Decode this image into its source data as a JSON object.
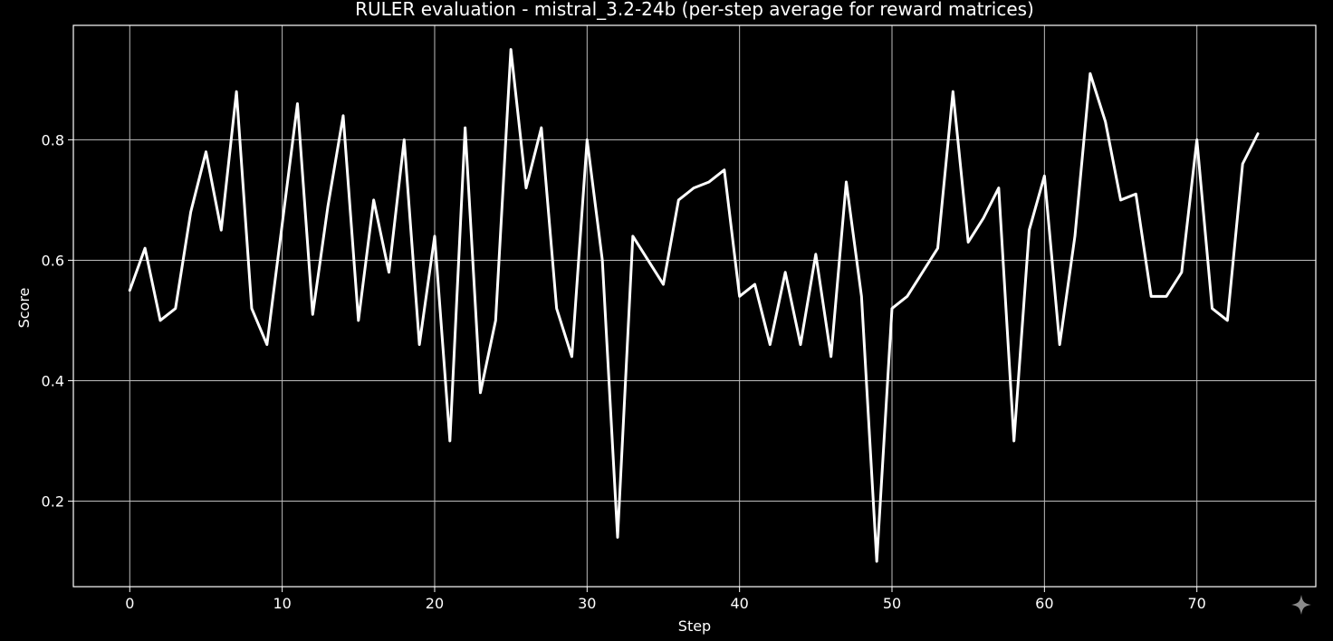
{
  "chart_data": {
    "type": "line",
    "title": "RULER evaluation - mistral_3.2-24b (per-step average for reward matrices)",
    "xlabel": "Step",
    "ylabel": "Score",
    "xlim": [
      -3.7,
      77.8
    ],
    "ylim": [
      0.058,
      0.99
    ],
    "xticks": [
      0,
      10,
      20,
      30,
      40,
      50,
      60,
      70
    ],
    "yticks": [
      0.2,
      0.4,
      0.6,
      0.8
    ],
    "xtick_labels": [
      "0",
      "10",
      "20",
      "30",
      "40",
      "50",
      "60",
      "70"
    ],
    "ytick_labels": [
      "0.2",
      "0.4",
      "0.6",
      "0.8"
    ],
    "grid": true,
    "colors": {
      "background": "#000000",
      "line": "#ffffff",
      "grid": "#bdbdbd",
      "text": "#ffffff"
    },
    "series": [
      {
        "x": [
          0,
          1,
          2,
          3,
          4,
          5,
          6,
          7,
          8,
          9,
          10,
          11,
          12,
          13,
          14,
          15,
          16,
          17,
          18,
          19,
          20,
          21,
          22,
          23,
          24,
          25,
          26,
          27,
          28,
          29,
          30,
          31,
          32,
          33,
          34,
          35,
          36,
          37,
          38,
          39,
          40,
          41,
          42,
          43,
          44,
          45,
          46,
          47,
          48,
          49,
          50,
          51,
          52,
          53,
          54,
          55,
          56,
          57,
          58,
          59,
          60,
          61,
          62,
          63,
          64,
          65,
          66,
          67,
          68,
          69,
          70,
          71,
          72,
          73,
          74
        ],
        "values": [
          0.55,
          0.62,
          0.5,
          0.52,
          0.68,
          0.78,
          0.65,
          0.88,
          0.52,
          0.46,
          0.66,
          0.86,
          0.51,
          0.69,
          0.84,
          0.5,
          0.7,
          0.58,
          0.8,
          0.46,
          0.64,
          0.3,
          0.82,
          0.38,
          0.5,
          0.95,
          0.72,
          0.82,
          0.52,
          0.44,
          0.8,
          0.6,
          0.14,
          0.64,
          0.6,
          0.56,
          0.7,
          0.72,
          0.73,
          0.75,
          0.54,
          0.56,
          0.46,
          0.58,
          0.46,
          0.61,
          0.44,
          0.73,
          0.54,
          0.1,
          0.52,
          0.54,
          0.58,
          0.62,
          0.88,
          0.63,
          0.67,
          0.72,
          0.3,
          0.65,
          0.74,
          0.46,
          0.64,
          0.91,
          0.83,
          0.7,
          0.71,
          0.54,
          0.54,
          0.58,
          0.8,
          0.52,
          0.5,
          0.76,
          0.81
        ]
      }
    ]
  },
  "icons": {
    "corner": "sparkle-icon"
  }
}
